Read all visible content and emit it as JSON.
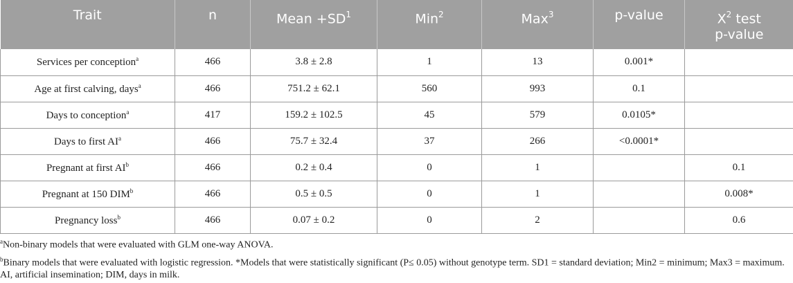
{
  "header": {
    "trait": "Trait",
    "n": "n",
    "mean_sd": "Mean +SD",
    "mean_sd_sup": "1",
    "min": "Min",
    "min_sup": "2",
    "max": "Max",
    "max_sup": "3",
    "pvalue": "p-value",
    "chi_prefix": "X",
    "chi_sup": "2",
    "chi_suffix": " test",
    "chi_line2": "p-value"
  },
  "rows": [
    {
      "trait": "Services per conception",
      "sup": "a",
      "n": "466",
      "mean": "3.8 ± 2.8",
      "min": "1",
      "max": "13",
      "p": "0.001*",
      "chi": ""
    },
    {
      "trait": "Age at first calving, days",
      "sup": "a",
      "n": "466",
      "mean": "751.2 ± 62.1",
      "min": "560",
      "max": "993",
      "p": "0.1",
      "chi": ""
    },
    {
      "trait": "Days to conception",
      "sup": "a",
      "n": "417",
      "mean": "159.2 ± 102.5",
      "min": "45",
      "max": "579",
      "p": "0.0105*",
      "chi": ""
    },
    {
      "trait": "Days to first AI",
      "sup": "a",
      "n": "466",
      "mean": "75.7 ± 32.4",
      "min": "37",
      "max": "266",
      "p": "<0.0001*",
      "chi": ""
    },
    {
      "trait": "Pregnant at first AI",
      "sup": "b",
      "n": "466",
      "mean": "0.2 ± 0.4",
      "min": "0",
      "max": "1",
      "p": "",
      "chi": "0.1"
    },
    {
      "trait": "Pregnant at 150 DIM",
      "sup": "b",
      "n": "466",
      "mean": "0.5 ± 0.5",
      "min": "0",
      "max": "1",
      "p": "",
      "chi": "0.008*"
    },
    {
      "trait": "Pregnancy loss",
      "sup": "b",
      "n": "466",
      "mean": "0.07 ± 0.2",
      "min": "0",
      "max": "2",
      "p": "",
      "chi": "0.6"
    }
  ],
  "footnotes": {
    "a_marker": "a",
    "a_text": "Non-binary models that were evaluated with GLM one-way ANOVA.",
    "b_marker": "b",
    "b_text": "Binary models that were evaluated with logistic regression. *Models that were statistically significant (P≤ 0.05) without genotype term. SD1 = standard deviation; Min2 = minimum; Max3 = maximum. AI, artificial insemination; DIM, days in milk."
  }
}
